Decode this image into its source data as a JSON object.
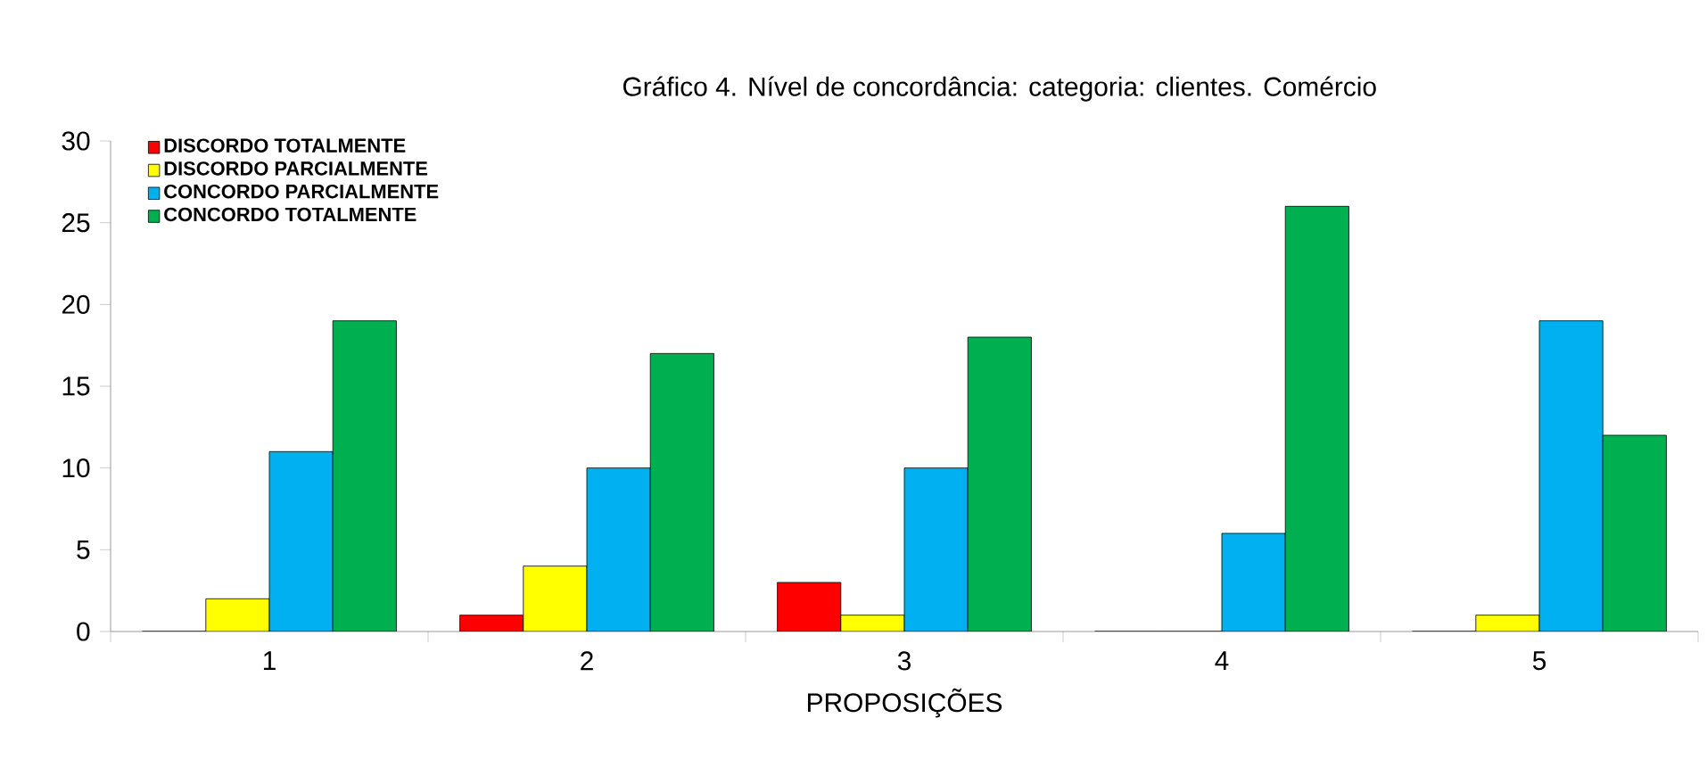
{
  "chart_data": {
    "type": "bar",
    "title": "Gráfico 4. Nível de concordância: categoria: clientes. Comércio",
    "xlabel": "PROPOSIÇÕES",
    "categories": [
      "1",
      "2",
      "3",
      "4",
      "5"
    ],
    "series": [
      {
        "name": "DISCORDO TOTALMENTE",
        "color": "#ff0000",
        "values": [
          0,
          1,
          3,
          0,
          0
        ]
      },
      {
        "name": "DISCORDO PARCIALMENTE",
        "color": "#ffff00",
        "values": [
          2,
          4,
          1,
          0,
          1
        ]
      },
      {
        "name": "CONCORDO PARCIALMENTE",
        "color": "#00b0f0",
        "values": [
          11,
          10,
          10,
          6,
          19
        ]
      },
      {
        "name": "CONCORDO TOTALMENTE",
        "color": "#00b050",
        "values": [
          19,
          17,
          18,
          26,
          12
        ]
      }
    ],
    "ylim": [
      0,
      30
    ],
    "yticks": [
      0,
      5,
      10,
      15,
      20,
      25,
      30
    ],
    "grid": false,
    "legend": "top left"
  }
}
